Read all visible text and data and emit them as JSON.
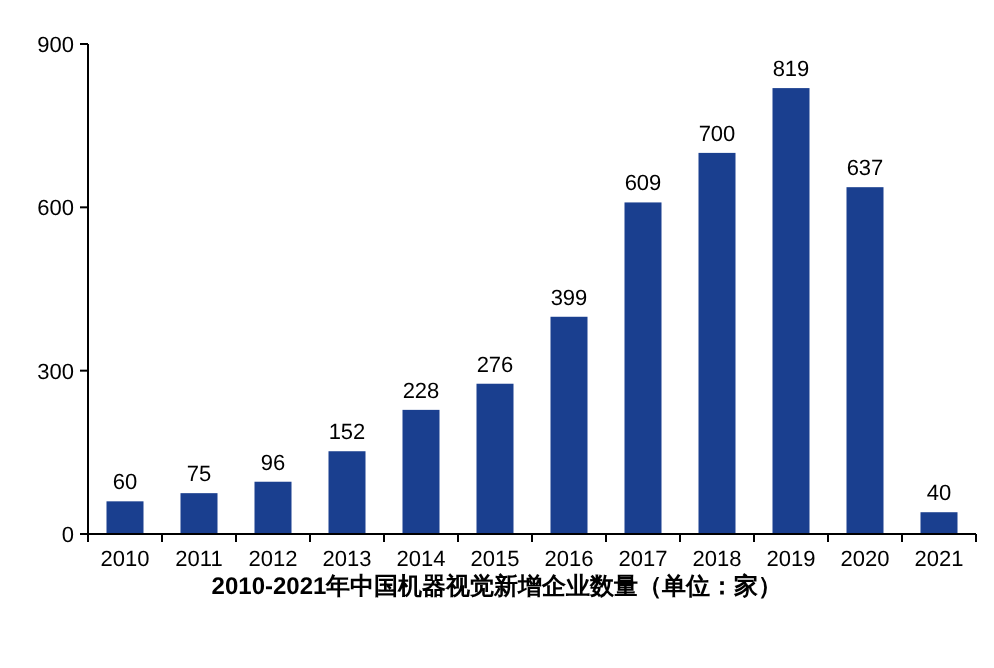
{
  "chart_data": {
    "type": "bar",
    "title": "2010-2021年中国机器视觉新增企业数量（单位：家）",
    "categories": [
      "2010",
      "2011",
      "2012",
      "2013",
      "2014",
      "2015",
      "2016",
      "2017",
      "2018",
      "2019",
      "2020",
      "2021"
    ],
    "values": [
      60,
      75,
      96,
      152,
      228,
      276,
      399,
      609,
      700,
      819,
      637,
      40
    ],
    "color": "#1a3f8f",
    "ylim": [
      0,
      900
    ],
    "yticks": [
      0,
      300,
      600,
      900
    ],
    "data_labels": true
  }
}
